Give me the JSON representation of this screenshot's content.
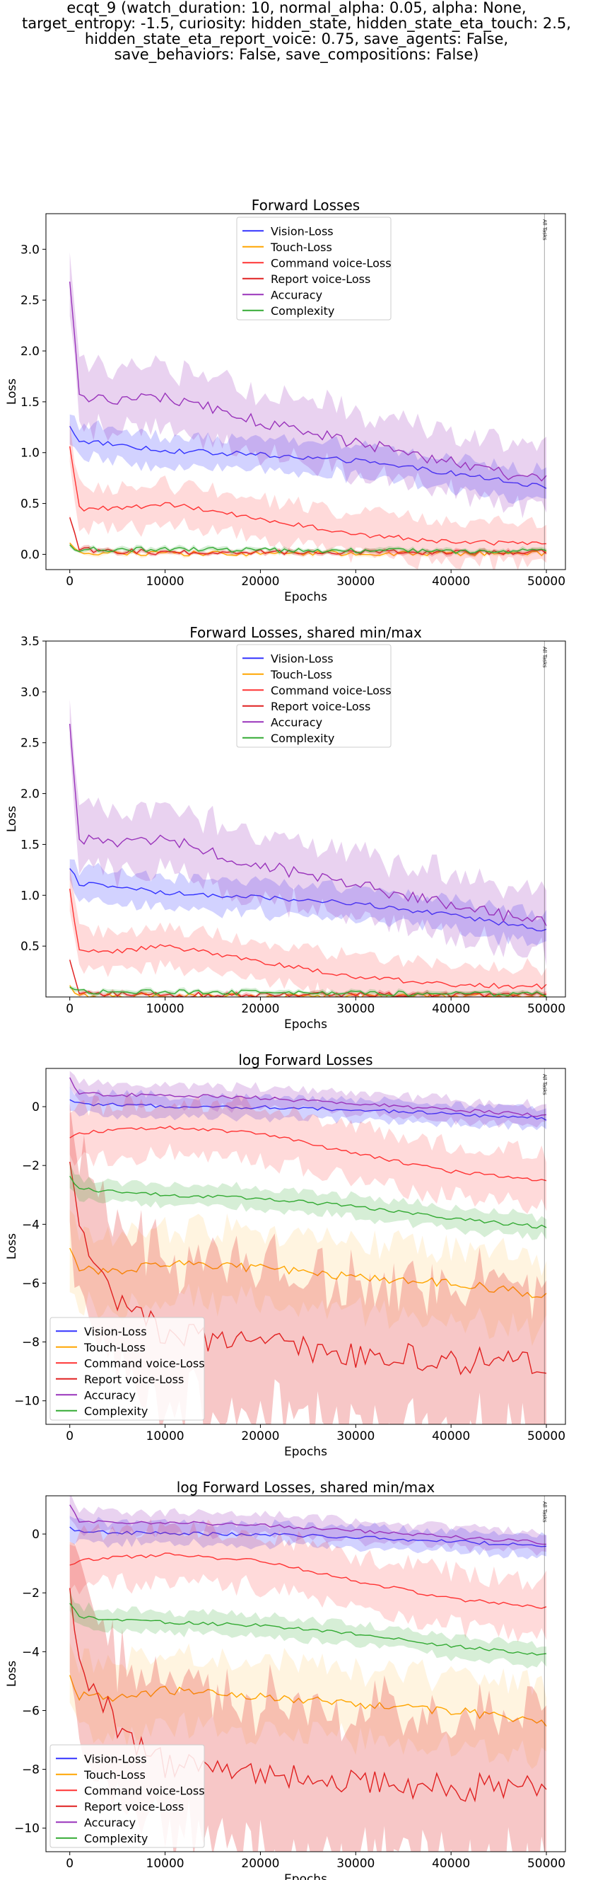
{
  "figure_title_lines": [
    "ecqt_9 (watch_duration: 10, normal_alpha: 0.05, alpha: None,",
    "target_entropy: -1.5, curiosity: hidden_state, hidden_state_eta_touch: 2.5,",
    "hidden_state_eta_report_voice: 0.75, save_agents: False,",
    "save_behaviors: False, save_compositions: False)"
  ],
  "colors": {
    "Vision-Loss": "#3333ff",
    "Touch-Loss": "#ffa500",
    "Command voice-Loss": "#ff3333",
    "Report voice-Loss": "#e02020",
    "Accuracy": "#9933bb",
    "Complexity": "#33aa33"
  },
  "vline_label": "All Tasks",
  "chart_data": [
    {
      "type": "line",
      "title": "Forward Losses",
      "xlabel": "Epochs",
      "ylabel": "Loss",
      "xlim": [
        -2500,
        52000
      ],
      "ylim": [
        -0.15,
        3.35
      ],
      "xticks": [
        0,
        10000,
        20000,
        30000,
        40000,
        50000
      ],
      "yticks": [
        0.0,
        0.5,
        1.0,
        1.5,
        2.0,
        2.5,
        3.0
      ],
      "ytick_labels": [
        "0.0",
        "0.5",
        "1.0",
        "1.5",
        "2.0",
        "2.5",
        "3.0"
      ],
      "vline_x": 49800,
      "legend": "top-center",
      "series": [
        {
          "name": "Vision-Loss",
          "x": [
            0,
            1000,
            5000,
            10000,
            20000,
            30000,
            40000,
            50000
          ],
          "y": [
            1.25,
            1.12,
            1.08,
            1.02,
            0.98,
            0.92,
            0.8,
            0.66
          ]
        },
        {
          "name": "Touch-Loss",
          "x": [
            0,
            1000,
            5000,
            10000,
            20000,
            30000,
            40000,
            50000
          ],
          "y": [
            0.1,
            0.02,
            0.01,
            0.01,
            0.01,
            0.01,
            0.01,
            0.01
          ]
        },
        {
          "name": "Command voice-Loss",
          "x": [
            0,
            1000,
            5000,
            10000,
            20000,
            30000,
            40000,
            50000
          ],
          "y": [
            1.05,
            0.45,
            0.45,
            0.5,
            0.35,
            0.2,
            0.12,
            0.1
          ]
        },
        {
          "name": "Report voice-Loss",
          "x": [
            0,
            1000,
            5000,
            10000,
            20000,
            30000,
            40000,
            50000
          ],
          "y": [
            0.35,
            0.05,
            0.03,
            0.02,
            0.02,
            0.02,
            0.02,
            0.02
          ]
        },
        {
          "name": "Accuracy",
          "x": [
            0,
            1000,
            5000,
            10000,
            20000,
            30000,
            40000,
            50000
          ],
          "y": [
            2.65,
            1.55,
            1.5,
            1.55,
            1.3,
            1.1,
            0.9,
            0.72
          ]
        },
        {
          "name": "Complexity",
          "x": [
            0,
            1000,
            5000,
            10000,
            20000,
            30000,
            40000,
            50000
          ],
          "y": [
            0.08,
            0.05,
            0.05,
            0.05,
            0.04,
            0.04,
            0.03,
            0.03
          ]
        }
      ]
    },
    {
      "type": "line",
      "title": "Forward Losses, shared min/max",
      "xlabel": "Epochs",
      "ylabel": "Loss",
      "xlim": [
        -2500,
        52000
      ],
      "ylim": [
        0.0,
        3.5
      ],
      "xticks": [
        0,
        10000,
        20000,
        30000,
        40000,
        50000
      ],
      "yticks": [
        0.5,
        1.0,
        1.5,
        2.0,
        2.5,
        3.0,
        3.5
      ],
      "ytick_labels": [
        "0.5",
        "1.0",
        "1.5",
        "2.0",
        "2.5",
        "3.0",
        "3.5"
      ],
      "vline_x": 49800,
      "legend": "top-center",
      "series": [
        {
          "name": "Vision-Loss",
          "x": [
            0,
            1000,
            5000,
            10000,
            20000,
            30000,
            40000,
            50000
          ],
          "y": [
            1.25,
            1.12,
            1.08,
            1.02,
            0.98,
            0.92,
            0.8,
            0.66
          ]
        },
        {
          "name": "Touch-Loss",
          "x": [
            0,
            1000,
            5000,
            10000,
            20000,
            30000,
            40000,
            50000
          ],
          "y": [
            0.1,
            0.02,
            0.01,
            0.01,
            0.01,
            0.01,
            0.01,
            0.01
          ]
        },
        {
          "name": "Command voice-Loss",
          "x": [
            0,
            1000,
            5000,
            10000,
            20000,
            30000,
            40000,
            50000
          ],
          "y": [
            1.05,
            0.45,
            0.45,
            0.5,
            0.35,
            0.2,
            0.12,
            0.1
          ]
        },
        {
          "name": "Report voice-Loss",
          "x": [
            0,
            1000,
            5000,
            10000,
            20000,
            30000,
            40000,
            50000
          ],
          "y": [
            0.35,
            0.05,
            0.03,
            0.02,
            0.02,
            0.02,
            0.02,
            0.02
          ]
        },
        {
          "name": "Accuracy",
          "x": [
            0,
            1000,
            5000,
            10000,
            20000,
            30000,
            40000,
            50000
          ],
          "y": [
            2.65,
            1.55,
            1.5,
            1.55,
            1.3,
            1.1,
            0.9,
            0.72
          ]
        },
        {
          "name": "Complexity",
          "x": [
            0,
            1000,
            5000,
            10000,
            20000,
            30000,
            40000,
            50000
          ],
          "y": [
            0.08,
            0.05,
            0.05,
            0.05,
            0.04,
            0.04,
            0.03,
            0.03
          ]
        }
      ]
    },
    {
      "type": "line",
      "title": "log Forward Losses",
      "xlabel": "Epochs",
      "ylabel": "Loss",
      "xlim": [
        -2500,
        52000
      ],
      "ylim": [
        -10.8,
        1.3
      ],
      "xticks": [
        0,
        10000,
        20000,
        30000,
        40000,
        50000
      ],
      "yticks": [
        0,
        -2,
        -4,
        -6,
        -8,
        -10
      ],
      "ytick_labels": [
        "0",
        "−2",
        "−4",
        "−6",
        "−8",
        "−10"
      ],
      "vline_x": 49800,
      "legend": "lower-left",
      "series": [
        {
          "name": "Vision-Loss",
          "x": [
            0,
            1000,
            5000,
            10000,
            20000,
            30000,
            40000,
            50000
          ],
          "y": [
            0.2,
            0.1,
            0.05,
            0.02,
            -0.02,
            -0.1,
            -0.25,
            -0.4
          ]
        },
        {
          "name": "Touch-Loss",
          "x": [
            0,
            1000,
            5000,
            10000,
            20000,
            30000,
            40000,
            50000
          ],
          "y": [
            -4.9,
            -5.5,
            -5.6,
            -5.3,
            -5.5,
            -5.8,
            -6.0,
            -6.4
          ]
        },
        {
          "name": "Command voice-Loss",
          "x": [
            0,
            1000,
            5000,
            10000,
            20000,
            30000,
            40000,
            50000
          ],
          "y": [
            -1.1,
            -0.9,
            -0.8,
            -0.7,
            -0.9,
            -1.6,
            -2.2,
            -2.5
          ]
        },
        {
          "name": "Report voice-Loss",
          "x": [
            0,
            1000,
            5000,
            10000,
            20000,
            30000,
            40000,
            50000
          ],
          "y": [
            -2.2,
            -4.5,
            -6.5,
            -7.8,
            -8.0,
            -8.4,
            -8.6,
            -8.6
          ]
        },
        {
          "name": "Accuracy",
          "x": [
            0,
            1000,
            5000,
            10000,
            20000,
            30000,
            40000,
            50000
          ],
          "y": [
            0.95,
            0.45,
            0.4,
            0.4,
            0.3,
            0.1,
            -0.1,
            -0.3
          ]
        },
        {
          "name": "Complexity",
          "x": [
            0,
            1000,
            5000,
            10000,
            20000,
            30000,
            40000,
            50000
          ],
          "y": [
            -2.4,
            -2.8,
            -2.9,
            -3.0,
            -3.1,
            -3.4,
            -3.8,
            -4.1
          ]
        }
      ]
    },
    {
      "type": "line",
      "title": "log Forward Losses, shared min/max",
      "xlabel": "Epochs",
      "ylabel": "Loss",
      "xlim": [
        -2500,
        52000
      ],
      "ylim": [
        -10.8,
        1.3
      ],
      "xticks": [
        0,
        10000,
        20000,
        30000,
        40000,
        50000
      ],
      "yticks": [
        0,
        -2,
        -4,
        -6,
        -8,
        -10
      ],
      "ytick_labels": [
        "0",
        "−2",
        "−4",
        "−6",
        "−8",
        "−10"
      ],
      "vline_x": 49800,
      "legend": "lower-left",
      "series": [
        {
          "name": "Vision-Loss",
          "x": [
            0,
            1000,
            5000,
            10000,
            20000,
            30000,
            40000,
            50000
          ],
          "y": [
            0.2,
            0.1,
            0.05,
            0.02,
            -0.02,
            -0.1,
            -0.25,
            -0.4
          ]
        },
        {
          "name": "Touch-Loss",
          "x": [
            0,
            1000,
            5000,
            10000,
            20000,
            30000,
            40000,
            50000
          ],
          "y": [
            -4.9,
            -5.5,
            -5.6,
            -5.3,
            -5.5,
            -5.8,
            -6.0,
            -6.4
          ]
        },
        {
          "name": "Command voice-Loss",
          "x": [
            0,
            1000,
            5000,
            10000,
            20000,
            30000,
            40000,
            50000
          ],
          "y": [
            -1.1,
            -0.9,
            -0.8,
            -0.7,
            -0.9,
            -1.6,
            -2.2,
            -2.5
          ]
        },
        {
          "name": "Report voice-Loss",
          "x": [
            0,
            1000,
            5000,
            10000,
            20000,
            30000,
            40000,
            50000
          ],
          "y": [
            -2.2,
            -4.5,
            -6.5,
            -7.8,
            -8.0,
            -8.4,
            -8.6,
            -8.6
          ]
        },
        {
          "name": "Accuracy",
          "x": [
            0,
            1000,
            5000,
            10000,
            20000,
            30000,
            40000,
            50000
          ],
          "y": [
            0.95,
            0.45,
            0.4,
            0.4,
            0.3,
            0.1,
            -0.1,
            -0.3
          ]
        },
        {
          "name": "Complexity",
          "x": [
            0,
            1000,
            5000,
            10000,
            20000,
            30000,
            40000,
            50000
          ],
          "y": [
            -2.4,
            -2.8,
            -2.9,
            -3.0,
            -3.1,
            -3.4,
            -3.8,
            -4.1
          ]
        }
      ]
    }
  ]
}
